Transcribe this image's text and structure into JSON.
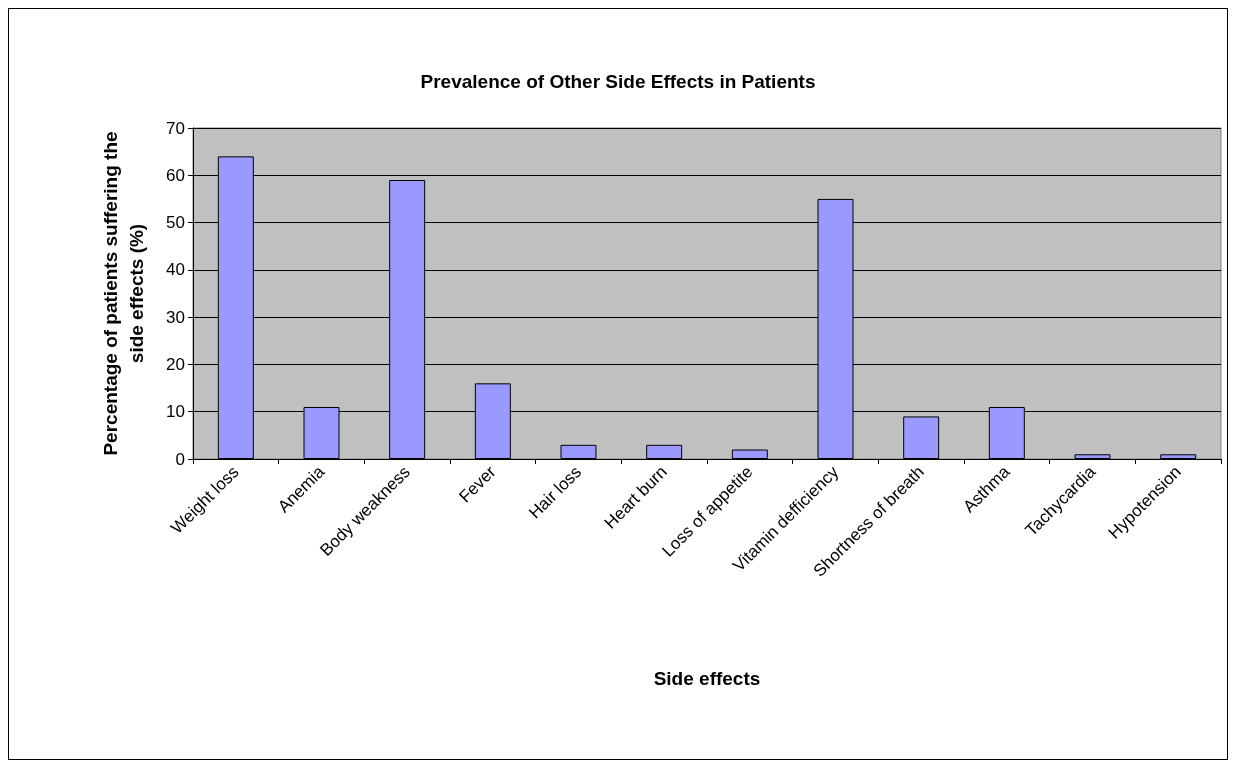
{
  "chart_data": {
    "type": "bar",
    "title": "Prevalence of Other Side Effects in Patients",
    "xlabel": "Side effects",
    "ylabel": "Percentage of patients suffering the\nside effects (%)",
    "categories": [
      "Weight loss",
      "Anemia",
      "Body weakness",
      "Fever",
      "Hair loss",
      "Heart burn",
      "Loss of appetite",
      "Vitamin defficiency",
      "Shortness of breath",
      "Asthma",
      "Tachycardia",
      "Hypotension"
    ],
    "values": [
      64,
      11,
      59,
      16,
      3,
      3,
      2,
      55,
      9,
      11,
      1,
      1
    ],
    "color": "#9999ff",
    "ylim": [
      0,
      70
    ],
    "yticks": [
      0,
      10,
      20,
      30,
      40,
      50,
      60,
      70
    ],
    "grid": "y"
  }
}
